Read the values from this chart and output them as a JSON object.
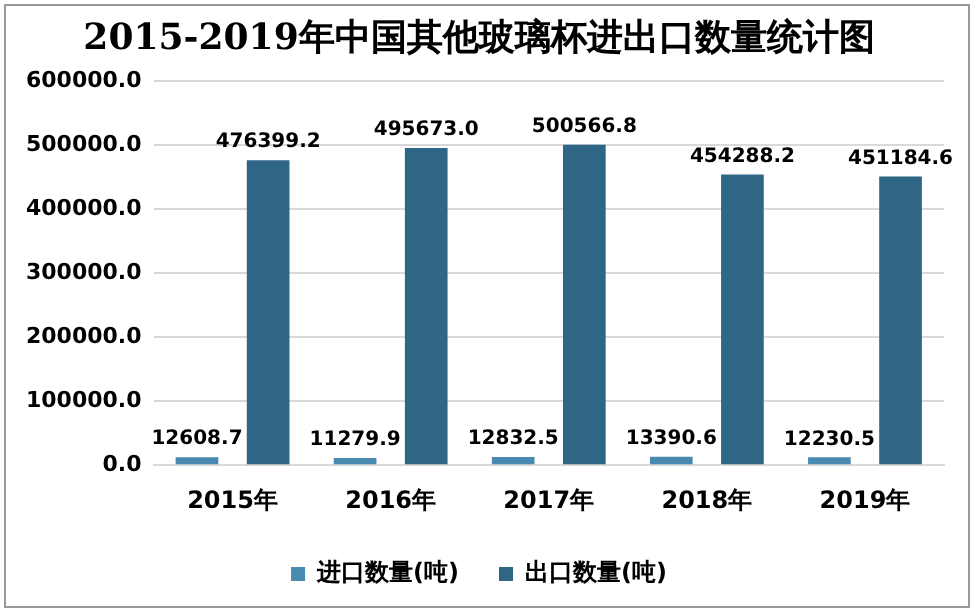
{
  "chart_data": {
    "type": "bar",
    "title": "2015-2019年中国其他玻璃杯进出口数量统计图",
    "categories": [
      "2015年",
      "2016年",
      "2017年",
      "2018年",
      "2019年"
    ],
    "series": [
      {
        "name": "进口数量(吨)",
        "color": "#4a8ab0",
        "values": [
          12608.7,
          11279.9,
          12832.5,
          13390.6,
          12230.5
        ],
        "value_labels": [
          "12608.7",
          "11279.9",
          "12832.5",
          "13390.6",
          "12230.5"
        ]
      },
      {
        "name": "出口数量(吨)",
        "color": "#2f6585",
        "values": [
          476399.2,
          495673.0,
          500566.8,
          454288.2,
          451184.6
        ],
        "value_labels": [
          "476399.2",
          "495673.0",
          "500566.8",
          "454288.2",
          "451184.6"
        ]
      }
    ],
    "ylim": [
      0,
      600000
    ],
    "yticks": [
      {
        "value": 0,
        "label": "0.0"
      },
      {
        "value": 100000,
        "label": "100000.0"
      },
      {
        "value": 200000,
        "label": "200000.0"
      },
      {
        "value": 300000,
        "label": "300000.0"
      },
      {
        "value": 400000,
        "label": "400000.0"
      },
      {
        "value": 500000,
        "label": "500000.0"
      },
      {
        "value": 600000,
        "label": "600000.0"
      }
    ],
    "grid": "y",
    "legend": "bottom"
  }
}
